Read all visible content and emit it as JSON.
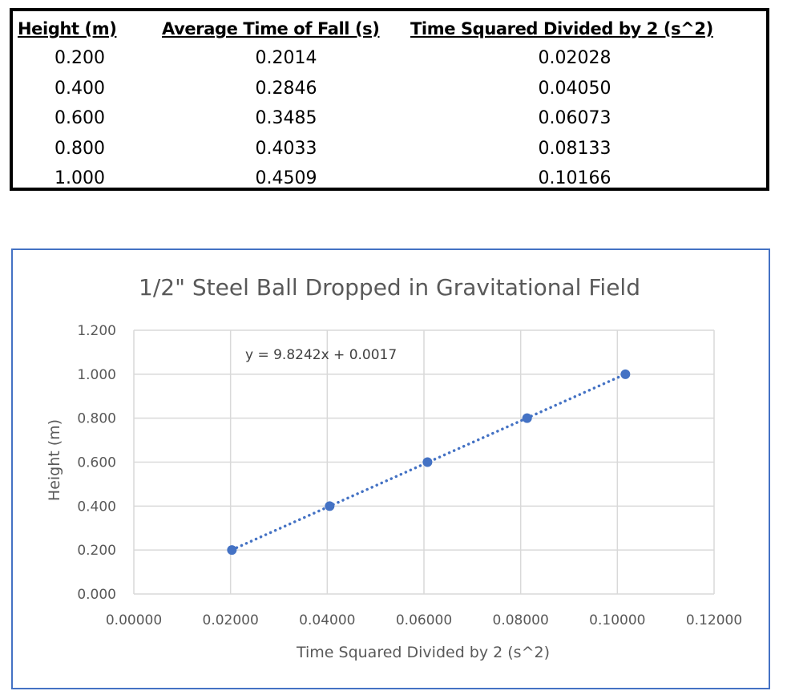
{
  "table": {
    "headers": [
      "Height (m)",
      "Average Time of Fall (s)",
      "Time Squared Divided by 2 (s^2)"
    ],
    "rows": [
      [
        "0.200",
        "0.2014",
        "0.02028"
      ],
      [
        "0.400",
        "0.2846",
        "0.04050"
      ],
      [
        "0.600",
        "0.3485",
        "0.06073"
      ],
      [
        "0.800",
        "0.4033",
        "0.08133"
      ],
      [
        "1.000",
        "0.4509",
        "0.10166"
      ]
    ]
  },
  "chart_data": {
    "type": "scatter",
    "title": "1/2\" Steel Ball Dropped in Gravitational Field",
    "xlabel": "Time Squared Divided by 2 (s^2)",
    "ylabel": "Height (m)",
    "xlim": [
      0,
      0.12
    ],
    "ylim": [
      0,
      1.2
    ],
    "x_ticks": [
      "0.00000",
      "0.02000",
      "0.04000",
      "0.06000",
      "0.08000",
      "0.10000",
      "0.12000"
    ],
    "y_ticks": [
      "0.000",
      "0.200",
      "0.400",
      "0.600",
      "0.800",
      "1.000",
      "1.200"
    ],
    "grid": true,
    "legend": "none",
    "points": [
      {
        "x": 0.02028,
        "y": 0.2
      },
      {
        "x": 0.0405,
        "y": 0.4
      },
      {
        "x": 0.06073,
        "y": 0.6
      },
      {
        "x": 0.08133,
        "y": 0.8
      },
      {
        "x": 0.10166,
        "y": 1.0
      }
    ],
    "trendline": {
      "slope": 9.8242,
      "intercept": 0.0017,
      "label": "y = 9.8242x + 0.0017",
      "style": "dotted"
    },
    "colors": {
      "series": "#4472c4",
      "grid": "#d9d9d9",
      "axis_text": "#595959",
      "border": "#4472c4"
    }
  }
}
